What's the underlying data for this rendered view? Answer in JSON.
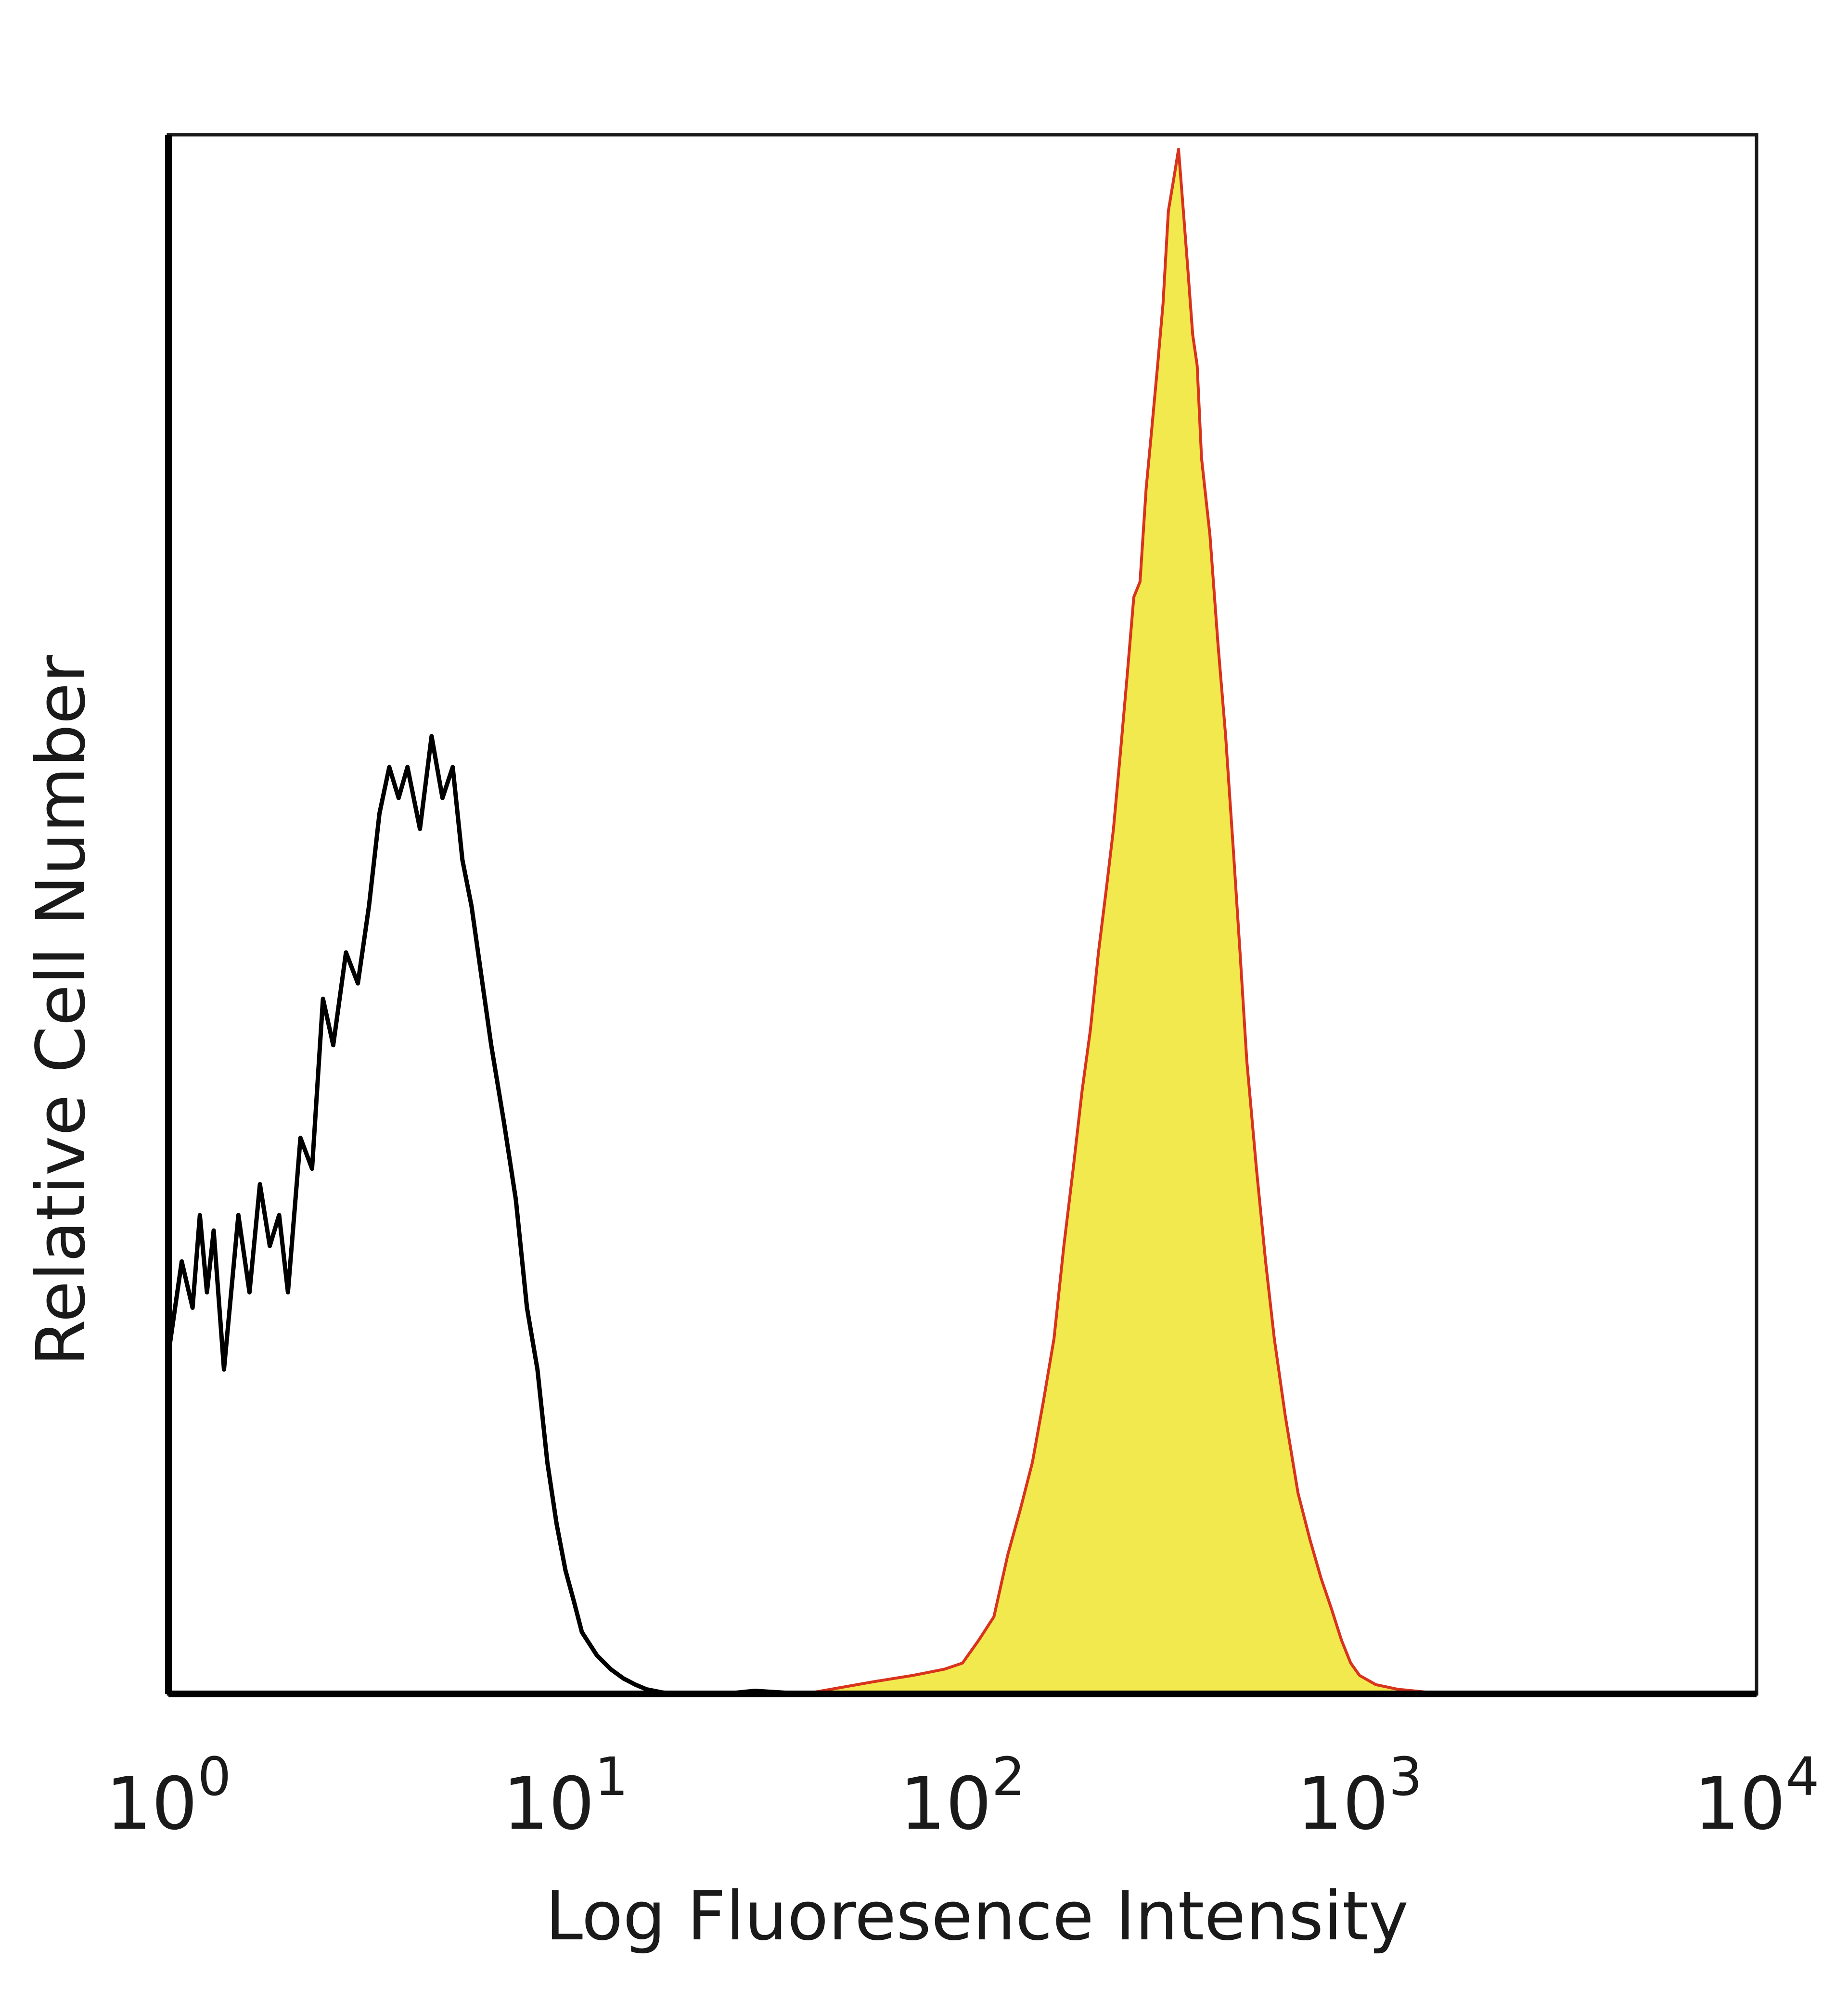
{
  "chart_data": {
    "type": "area",
    "xlabel": "Log Fluoresence Intensity",
    "ylabel": "Relative Cell Number",
    "x_scale": "log",
    "xlim": [
      1,
      10000
    ],
    "ylim": [
      0,
      100
    ],
    "grid": false,
    "x_ticks": [
      {
        "base": "10",
        "exp": "0",
        "value": 1
      },
      {
        "base": "10",
        "exp": "1",
        "value": 10
      },
      {
        "base": "10",
        "exp": "2",
        "value": 100
      },
      {
        "base": "10",
        "exp": "3",
        "value": 1000
      },
      {
        "base": "10",
        "exp": "4",
        "value": 10000
      }
    ],
    "series": [
      {
        "style": "outline",
        "color": "#000000",
        "x": [
          1,
          1.08,
          1.15,
          1.2,
          1.25,
          1.3,
          1.38,
          1.5,
          1.6,
          1.7,
          1.8,
          1.9,
          2.0,
          2.15,
          2.3,
          2.45,
          2.6,
          2.8,
          3.0,
          3.2,
          3.4,
          3.6,
          3.8,
          4.0,
          4.3,
          4.6,
          4.9,
          5.2,
          5.5,
          5.8,
          6.1,
          6.5,
          7.0,
          7.5,
          8.0,
          8.5,
          9.0,
          9.5,
          10.0,
          10.5,
          11,
          12,
          13,
          14,
          15,
          16,
          17.5,
          19,
          21,
          25,
          30,
          40,
          60,
          100,
          10000
        ],
        "y": [
          22,
          28,
          25,
          31,
          26,
          30,
          21,
          31,
          26,
          33,
          29,
          31,
          26,
          36,
          34,
          45,
          42,
          48,
          46,
          51,
          57,
          60,
          58,
          60,
          56,
          62,
          58,
          60,
          54,
          51,
          47,
          42,
          37,
          32,
          25,
          21,
          15,
          11,
          8,
          6,
          4,
          2.5,
          1.6,
          1,
          0.6,
          0.3,
          0.1,
          0,
          0,
          0,
          0.2,
          0,
          0,
          0,
          0
        ]
      },
      {
        "style": "filled",
        "fill": "#f2e94e",
        "stroke": "#d9331e",
        "x": [
          1,
          40,
          60,
          75,
          90,
          100,
          110,
          120,
          130,
          140,
          150,
          160,
          170,
          180,
          190,
          200,
          210,
          220,
          230,
          240,
          250,
          260,
          270,
          280,
          290,
          300,
          310,
          320,
          330,
          340,
          350,
          360,
          370,
          380,
          390,
          400,
          420,
          440,
          460,
          480,
          500,
          520,
          550,
          580,
          610,
          650,
          700,
          750,
          800,
          850,
          900,
          950,
          1000,
          1100,
          1250,
          1500,
          2000,
          10000
        ],
        "y": [
          0,
          0,
          0.8,
          1.2,
          1.6,
          2,
          3.5,
          5,
          9,
          12,
          15,
          19,
          23,
          29,
          34,
          39,
          43,
          48,
          52,
          56,
          61,
          66,
          71,
          72,
          78,
          82,
          86,
          90,
          96,
          98,
          100,
          96,
          92,
          88,
          86,
          80,
          75,
          68,
          62,
          55,
          48,
          41,
          34,
          28,
          23,
          18,
          13,
          10,
          7.5,
          5.5,
          3.5,
          2,
          1.2,
          0.6,
          0.3,
          0.1,
          0,
          0
        ]
      }
    ]
  }
}
